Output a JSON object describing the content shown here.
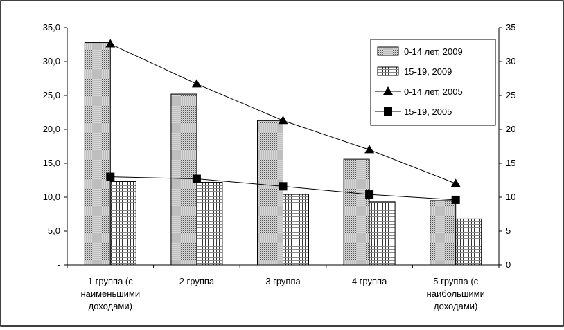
{
  "chart_data": {
    "type": "bar",
    "categories": [
      [
        "1 группа (с",
        "наименьшими",
        "доходами)"
      ],
      [
        "2 группа"
      ],
      [
        "3 группа"
      ],
      [
        "4 группа"
      ],
      [
        "5 группа (с",
        "наибольшими",
        "доходами)"
      ]
    ],
    "bar_series": [
      {
        "name": "0-14 лет, 2009",
        "values": [
          32.8,
          25.2,
          21.3,
          15.6,
          9.5
        ],
        "pattern": "dots"
      },
      {
        "name": "15-19, 2009",
        "values": [
          12.3,
          12.2,
          10.4,
          9.3,
          6.8
        ],
        "pattern": "grid"
      }
    ],
    "line_series": [
      {
        "name": "0-14 лет, 2005",
        "values": [
          32.6,
          26.7,
          21.3,
          17.0,
          12.0
        ],
        "marker": "triangle"
      },
      {
        "name": "15-19, 2005",
        "values": [
          13.0,
          12.7,
          11.6,
          10.4,
          9.6
        ],
        "marker": "square"
      }
    ],
    "left_axis": {
      "min": 0,
      "max": 35,
      "ticks": [
        {
          "v": 0,
          "label": "-"
        },
        {
          "v": 5,
          "label": "5,0"
        },
        {
          "v": 10,
          "label": "10,0"
        },
        {
          "v": 15,
          "label": "15,0"
        },
        {
          "v": 20,
          "label": "20,0"
        },
        {
          "v": 25,
          "label": "25,0"
        },
        {
          "v": 30,
          "label": "30,0"
        },
        {
          "v": 35,
          "label": "35,0"
        }
      ]
    },
    "right_axis": {
      "min": 0,
      "max": 35,
      "ticks": [
        {
          "v": 0,
          "label": "0"
        },
        {
          "v": 5,
          "label": "5"
        },
        {
          "v": 10,
          "label": "10"
        },
        {
          "v": 15,
          "label": "15"
        },
        {
          "v": 20,
          "label": "20"
        },
        {
          "v": 25,
          "label": "25"
        },
        {
          "v": 30,
          "label": "30"
        },
        {
          "v": 35,
          "label": "35"
        }
      ]
    },
    "grid": false,
    "legend_position": "top-right",
    "title": "",
    "xlabel": "",
    "ylabel": ""
  }
}
